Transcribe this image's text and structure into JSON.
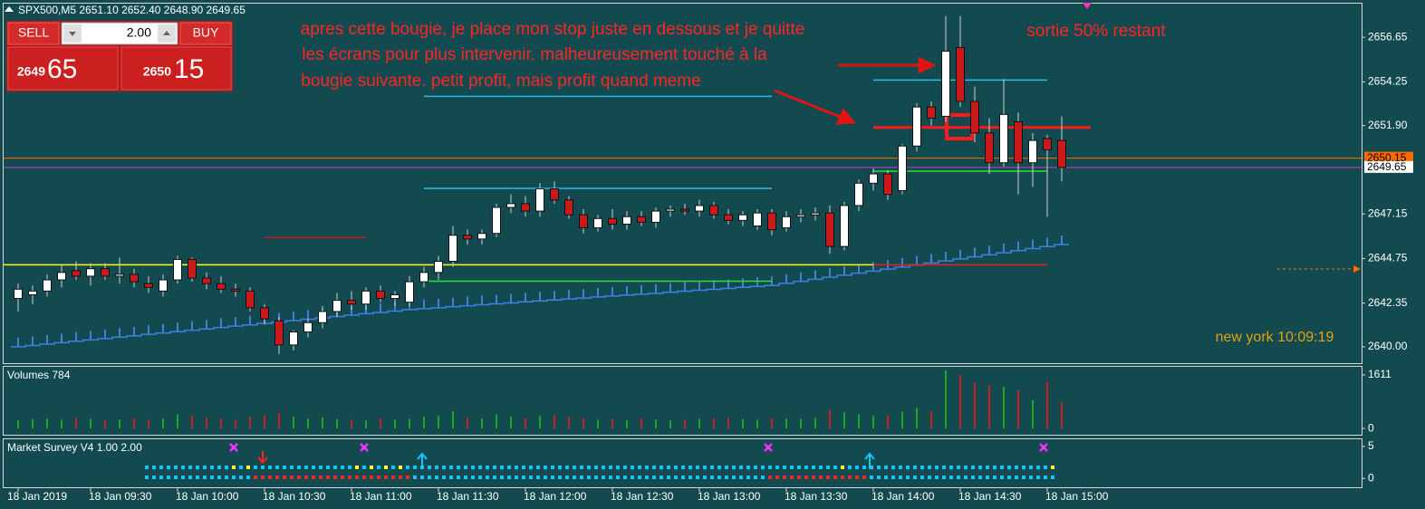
{
  "header": {
    "title": "SPX500,M5  2651.10 2652.40 2648.90 2649.65"
  },
  "trade_panel": {
    "sell": "SELL",
    "lot": "2.00",
    "buy": "BUY",
    "sell_big": "2649",
    "sell_small": "65",
    "buy_big": "2650",
    "buy_small": "15"
  },
  "annotations": {
    "note": [
      "apres cette bougie, je place mon stop juste en dessous et je quitte",
      " les écrans pour plus intervenir. malheureusement touché à la",
      "bougie suivante.  petit profit, mais profit quand meme"
    ],
    "exit": "sortie  50% restant",
    "clock": "new york  10:09:19"
  },
  "chart_data": [
    {
      "type": "candlestick",
      "categories": [
        "18 Jan 2019",
        null,
        null,
        null,
        null,
        "18 Jan 09:30",
        null,
        null,
        null,
        null,
        null,
        "18 Jan 10:00",
        null,
        null,
        null,
        null,
        null,
        "18 Jan 10:30",
        null,
        null,
        null,
        null,
        null,
        "18 Jan 11:00",
        null,
        null,
        null,
        null,
        null,
        "18 Jan 11:30",
        null,
        null,
        null,
        null,
        null,
        "18 Jan 12:00",
        null,
        null,
        null,
        null,
        null,
        "18 Jan 12:30",
        null,
        null,
        null,
        null,
        null,
        "18 Jan 13:00",
        null,
        null,
        null,
        null,
        null,
        "18 Jan 13:30",
        null,
        null,
        null,
        null,
        null,
        "18 Jan 14:00",
        null,
        null,
        null,
        null,
        null,
        "18 Jan 14:30",
        null,
        null,
        null,
        null,
        null,
        "18 Jan 15:00",
        null
      ],
      "open": [
        2642.6,
        2642.8,
        2643.0,
        2643.6,
        2644.1,
        2643.8,
        2644.2,
        2643.8,
        2643.9,
        2643.4,
        2643.0,
        2643.6,
        2644.7,
        2643.7,
        2643.4,
        2643.1,
        2643.0,
        2642.1,
        2641.4,
        2640.1,
        2640.8,
        2641.3,
        2641.9,
        2642.5,
        2642.3,
        2643.0,
        2642.6,
        2642.4,
        2643.5,
        2644.0,
        2644.6,
        2646.0,
        2645.8,
        2646.1,
        2647.5,
        2647.7,
        2647.3,
        2648.5,
        2647.9,
        2647.1,
        2646.4,
        2646.9,
        2646.6,
        2647.0,
        2646.7,
        2647.3,
        2647.4,
        2647.3,
        2647.6,
        2647.1,
        2646.8,
        2646.5,
        2647.2,
        2646.4,
        2647.0,
        2647.1,
        2647.2,
        2645.4,
        2647.6,
        2648.8,
        2649.3,
        2648.4,
        2650.8,
        2652.9,
        2652.4,
        2656.1,
        2653.2,
        2651.5,
        2649.9,
        2652.1,
        2649.9,
        2651.2,
        2651.1
      ],
      "high": [
        2643.4,
        2643.3,
        2643.9,
        2644.4,
        2644.6,
        2644.5,
        2644.5,
        2644.8,
        2644.2,
        2643.8,
        2643.9,
        2644.9,
        2644.8,
        2644.0,
        2643.8,
        2643.4,
        2643.2,
        2642.3,
        2641.6,
        2640.9,
        2641.5,
        2642.2,
        2642.9,
        2643.0,
        2643.2,
        2643.3,
        2643.0,
        2643.8,
        2644.3,
        2644.9,
        2646.5,
        2646.3,
        2646.3,
        2647.7,
        2648.2,
        2648.1,
        2648.8,
        2648.9,
        2648.1,
        2647.4,
        2647.1,
        2647.4,
        2647.3,
        2647.3,
        2647.5,
        2647.6,
        2647.7,
        2647.9,
        2647.8,
        2647.4,
        2647.3,
        2647.4,
        2647.4,
        2647.3,
        2647.4,
        2647.5,
        2647.6,
        2647.8,
        2649.0,
        2649.6,
        2649.5,
        2650.9,
        2653.1,
        2653.2,
        2657.8,
        2657.8,
        2654.0,
        2652.3,
        2654.4,
        2652.6,
        2651.5,
        2651.4,
        2652.4
      ],
      "low": [
        2641.9,
        2642.3,
        2642.7,
        2643.2,
        2643.6,
        2643.3,
        2643.6,
        2643.4,
        2643.2,
        2642.9,
        2642.7,
        2643.4,
        2643.5,
        2643.1,
        2642.9,
        2642.7,
        2641.9,
        2641.2,
        2639.6,
        2639.8,
        2640.5,
        2641.0,
        2641.6,
        2642.0,
        2642.0,
        2642.4,
        2642.2,
        2642.2,
        2643.2,
        2643.6,
        2644.3,
        2645.5,
        2645.5,
        2645.9,
        2647.2,
        2647.0,
        2647.0,
        2647.7,
        2646.9,
        2646.1,
        2646.2,
        2646.3,
        2646.3,
        2646.5,
        2646.4,
        2647.0,
        2647.1,
        2647.0,
        2646.9,
        2646.6,
        2646.5,
        2646.3,
        2646.0,
        2646.2,
        2646.7,
        2646.8,
        2645.0,
        2645.2,
        2647.3,
        2648.4,
        2647.9,
        2648.2,
        2650.5,
        2651.9,
        2652.1,
        2652.9,
        2651.0,
        2649.3,
        2649.7,
        2648.2,
        2648.6,
        2647.0,
        2648.9
      ],
      "close": [
        2643.1,
        2643.0,
        2643.6,
        2644.0,
        2643.8,
        2644.2,
        2643.8,
        2643.9,
        2643.5,
        2643.2,
        2643.6,
        2644.7,
        2643.7,
        2643.4,
        2643.1,
        2643.0,
        2642.1,
        2641.5,
        2640.1,
        2640.8,
        2641.3,
        2641.9,
        2642.5,
        2642.3,
        2643.0,
        2642.6,
        2642.8,
        2643.5,
        2644.0,
        2644.6,
        2646.0,
        2645.8,
        2646.1,
        2647.5,
        2647.7,
        2647.3,
        2648.5,
        2647.9,
        2647.1,
        2646.4,
        2646.9,
        2646.6,
        2647.0,
        2646.7,
        2647.3,
        2647.4,
        2647.3,
        2647.6,
        2647.1,
        2646.8,
        2647.1,
        2647.2,
        2646.3,
        2647.0,
        2647.1,
        2647.2,
        2645.4,
        2647.6,
        2648.8,
        2649.3,
        2648.2,
        2650.8,
        2652.9,
        2652.3,
        2655.9,
        2653.2,
        2651.5,
        2649.9,
        2652.5,
        2649.9,
        2651.1,
        2650.6,
        2649.65
      ],
      "up_color": "#ffffff",
      "down_color": "#c8191b",
      "trail": {
        "color": "#3f7fe0",
        "values": [
          2640.0,
          2640.07,
          2640.15,
          2640.22,
          2640.3,
          2640.37,
          2640.44,
          2640.52,
          2640.59,
          2640.67,
          2640.74,
          2640.81,
          2640.89,
          2640.96,
          2641.04,
          2641.11,
          2641.18,
          2641.26,
          2641.33,
          2641.41,
          2641.48,
          2641.55,
          2641.63,
          2641.7,
          2641.78,
          2641.85,
          2641.92,
          2642.0,
          2642.05,
          2642.1,
          2642.16,
          2642.21,
          2642.26,
          2642.31,
          2642.36,
          2642.42,
          2642.47,
          2642.52,
          2642.57,
          2642.62,
          2642.68,
          2642.73,
          2642.78,
          2642.83,
          2642.88,
          2642.94,
          2642.99,
          2643.04,
          2643.09,
          2643.14,
          2643.2,
          2643.25,
          2643.3,
          2643.41,
          2643.52,
          2643.63,
          2643.74,
          2643.85,
          2643.96,
          2644.07,
          2644.18,
          2644.29,
          2644.4,
          2644.51,
          2644.62,
          2644.73,
          2644.84,
          2644.95,
          2645.06,
          2645.17,
          2645.28,
          2645.39,
          2645.5
        ]
      },
      "levels": [
        {
          "value": 2653.47,
          "color": "#2fb8e6",
          "from": 28,
          "to": 52
        },
        {
          "value": 2648.52,
          "color": "#2fb8e6",
          "from": 28,
          "to": 52
        },
        {
          "value": 2654.35,
          "color": "#2fb8e6",
          "from": 59,
          "to": 71
        },
        {
          "value": 2645.88,
          "color": "#d41414",
          "from": 17,
          "to": 24
        },
        {
          "value": 2644.41,
          "color": "#ffff00",
          "from": -1,
          "to": 59
        },
        {
          "value": 2644.41,
          "color": "#ff1a1a",
          "from": 59,
          "to": 71
        },
        {
          "value": 2643.53,
          "color": "#33dd33",
          "from": 28,
          "to": 52
        },
        {
          "value": 2649.45,
          "color": "#33dd33",
          "from": 59,
          "to": 71
        },
        {
          "value": 2651.8,
          "color": "#ff1a1a",
          "from": 59,
          "to": 74,
          "style": "thick"
        }
      ],
      "price_lines": [
        {
          "value": 2650.15,
          "color": "#ff6a00"
        },
        {
          "value": 2649.65,
          "color": "#ffffff"
        }
      ],
      "ylim": [
        2639.12,
        2658.46
      ],
      "yticks": [
        2656.65,
        2654.25,
        {
          "value": 2651.9,
          "label": "2651.90"
        },
        2647.15,
        2644.75,
        2642.35,
        {
          "value": 2640,
          "label": "2640.00"
        }
      ]
    },
    {
      "type": "bar",
      "title": "Volumes 784",
      "values": [
        250,
        280,
        300,
        260,
        320,
        290,
        240,
        270,
        310,
        260,
        300,
        420,
        380,
        330,
        290,
        260,
        350,
        400,
        470,
        360,
        300,
        330,
        280,
        260,
        240,
        300,
        270,
        290,
        350,
        380,
        520,
        330,
        300,
        420,
        360,
        310,
        380,
        400,
        340,
        300,
        260,
        280,
        250,
        300,
        270,
        240,
        260,
        290,
        300,
        320,
        280,
        260,
        310,
        300,
        290,
        320,
        560,
        480,
        420,
        380,
        400,
        500,
        620,
        520,
        1750,
        1600,
        1380,
        1300,
        1250,
        1150,
        850,
        1400,
        784
      ],
      "up_color": "#1ea81e",
      "down_color": "#d01c1c",
      "ylim": [
        -188,
        1853
      ],
      "yticks": [
        0,
        1611
      ]
    },
    {
      "type": "indicator",
      "title": "Market Survey V4 1.00 2.00",
      "ylim": [
        -1.39,
        6.11
      ],
      "yticks": [
        0,
        5
      ]
    }
  ]
}
